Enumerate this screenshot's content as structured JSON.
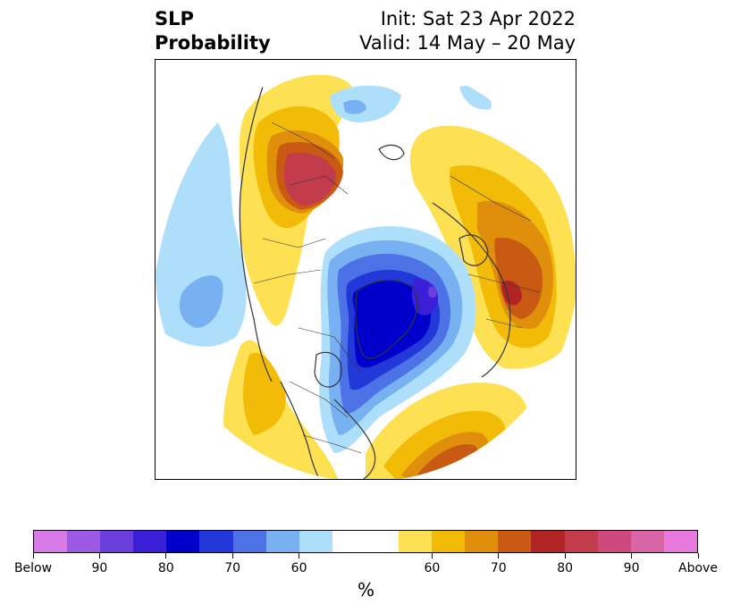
{
  "title": {
    "line1": "SLP",
    "line2": "Probability",
    "init": "Init: Sat 23 Apr 2022",
    "valid": "Valid: 14 May – 20 May"
  },
  "colorbar": {
    "unit": "%",
    "colors": [
      "#d67ae8",
      "#9b5ae2",
      "#6a3fdb",
      "#3a1fd6",
      "#0000cc",
      "#2238d9",
      "#4c72e6",
      "#78b1f2",
      "#aedffa",
      "#ffffff",
      "#ffffff",
      "#fde152",
      "#f2bb08",
      "#e08f0c",
      "#c85a14",
      "#b02424",
      "#c23c4c",
      "#cc4a7c",
      "#d865a6",
      "#e87ade"
    ],
    "labels": [
      {
        "text": "Below",
        "index": 0
      },
      {
        "text": "90",
        "index": 2
      },
      {
        "text": "80",
        "index": 4
      },
      {
        "text": "70",
        "index": 6
      },
      {
        "text": "60",
        "index": 8
      },
      {
        "text": "60",
        "index": 12
      },
      {
        "text": "70",
        "index": 14
      },
      {
        "text": "80",
        "index": 16
      },
      {
        "text": "90",
        "index": 18
      },
      {
        "text": "Above",
        "index": 20
      }
    ]
  }
}
